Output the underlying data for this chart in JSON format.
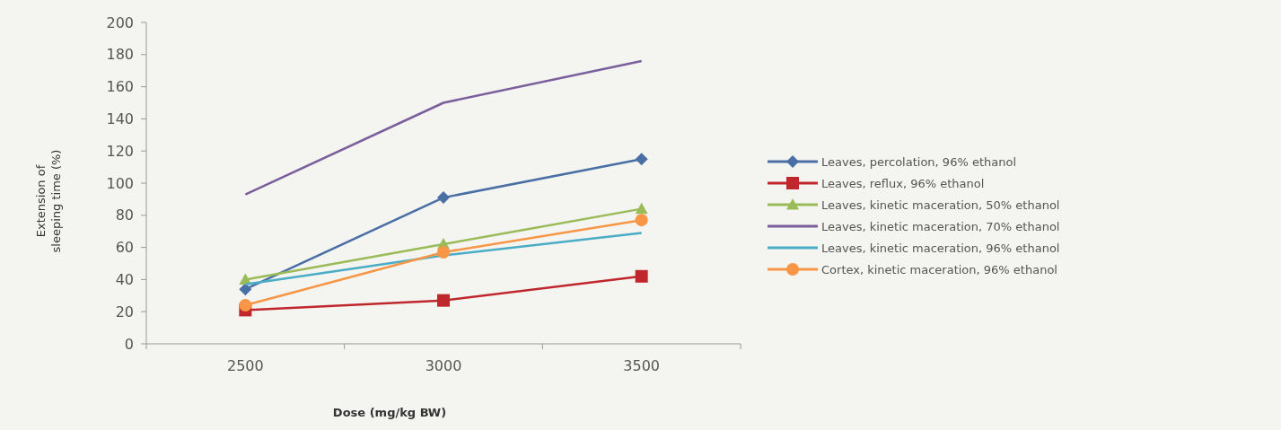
{
  "chart_data": {
    "type": "line",
    "xlabel": "Dose (mg/kg BW)",
    "ylabel": "Extension of\nsleeping time (%)",
    "categories": [
      "2500",
      "3000",
      "3500"
    ],
    "ylim": [
      0,
      200
    ],
    "yticks": [
      0,
      20,
      40,
      60,
      80,
      100,
      120,
      140,
      160,
      180,
      200
    ],
    "grid": false,
    "legend": "right",
    "series": [
      {
        "name": "Leaves, percolation, 96% ethanol",
        "color": "#4a6fa5",
        "marker": "diamond",
        "values": [
          34,
          91,
          115
        ]
      },
      {
        "name": "Leaves, reflux, 96% ethanol",
        "color": "#c0272d",
        "marker": "square",
        "values": [
          21,
          27,
          42
        ]
      },
      {
        "name": "Leaves, kinetic maceration, 50% ethanol",
        "color": "#9bbb59",
        "marker": "triangle",
        "values": [
          40,
          62,
          84
        ]
      },
      {
        "name": "Leaves, kinetic maceration, 70% ethanol",
        "color": "#7b5e9c",
        "marker": "none",
        "values": [
          93,
          150,
          176
        ]
      },
      {
        "name": "Leaves, kinetic maceration, 96% ethanol",
        "color": "#4bacc6",
        "marker": "none",
        "values": [
          37,
          55,
          69
        ]
      },
      {
        "name": "Cortex, kinetic maceration, 96% ethanol",
        "color": "#f79646",
        "marker": "circle",
        "values": [
          24,
          57,
          77
        ]
      }
    ]
  }
}
